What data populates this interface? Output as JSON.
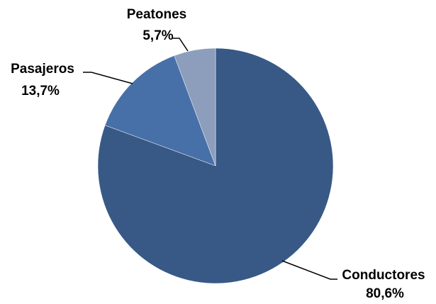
{
  "chart_data": {
    "type": "pie",
    "slices": [
      {
        "label": "Conductores",
        "value_label": "80,6%",
        "value": 80.6,
        "color": "#385985"
      },
      {
        "label": "Pasajeros",
        "value_label": "13,7%",
        "value": 13.7,
        "color": "#4870a8"
      },
      {
        "label": "Peatones",
        "value_label": "5,7%",
        "value": 5.7,
        "color": "#8d9dbc"
      }
    ]
  }
}
